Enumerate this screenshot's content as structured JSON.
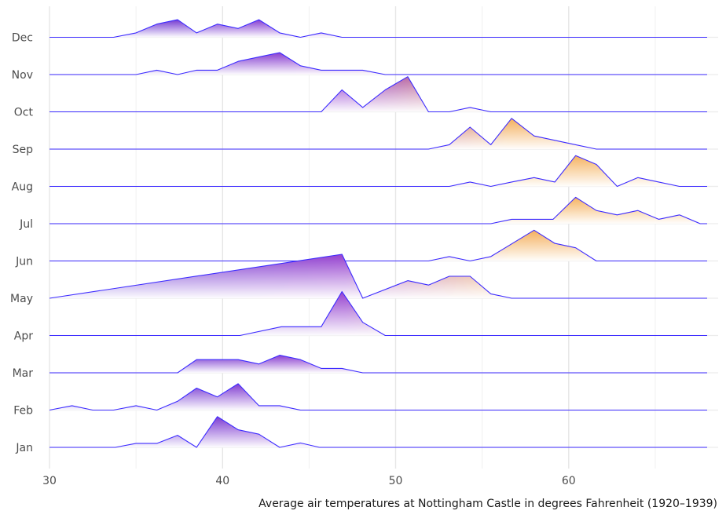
{
  "chart_data": {
    "type": "area",
    "subtype": "ridgeline",
    "caption": "Average air temperatures at Nottingham Castle in degrees Fahrenheit (1920–1939)",
    "xlabel": "",
    "ylabel": "",
    "xlim": [
      30,
      68
    ],
    "x_ticks": [
      "30",
      "40",
      "50",
      "60"
    ],
    "grid": true,
    "color_scale": {
      "low": "#ffffff",
      "mid": "#7a2fd6",
      "high": "#f2a64a",
      "line": "#3c2bff"
    },
    "categories": [
      "Jan",
      "Feb",
      "Mar",
      "Apr",
      "May",
      "Jun",
      "Jul",
      "Aug",
      "Sep",
      "Oct",
      "Nov",
      "Dec"
    ],
    "series": [
      {
        "name": "Jan",
        "x": [
          30.0,
          33.8,
          35.0,
          36.2,
          37.4,
          38.5,
          39.7,
          40.9,
          42.1,
          43.3,
          44.5,
          45.6,
          68.0
        ],
        "y": [
          0,
          0,
          0.18,
          0.18,
          0.55,
          0,
          1.4,
          0.8,
          0.6,
          0,
          0.2,
          0,
          0
        ]
      },
      {
        "name": "Feb",
        "x": [
          30.0,
          31.3,
          32.5,
          33.7,
          35.0,
          36.2,
          37.4,
          38.5,
          39.7,
          40.9,
          42.1,
          43.3,
          44.5,
          68.0
        ],
        "y": [
          0,
          0.2,
          0,
          0,
          0.2,
          0,
          0.4,
          1.0,
          0.6,
          1.2,
          0.2,
          0.2,
          0,
          0
        ]
      },
      {
        "name": "Mar",
        "x": [
          30.0,
          37.4,
          38.5,
          39.7,
          40.9,
          42.1,
          43.3,
          44.5,
          45.7,
          46.9,
          48.1,
          68.0
        ],
        "y": [
          0,
          0,
          0.6,
          0.6,
          0.6,
          0.4,
          0.8,
          0.6,
          0.2,
          0.2,
          0,
          0
        ]
      },
      {
        "name": "Apr",
        "x": [
          30.0,
          41.0,
          43.4,
          45.7,
          46.9,
          48.1,
          49.4,
          68.0
        ],
        "y": [
          0,
          0,
          0.4,
          0.4,
          2.0,
          0.6,
          0,
          0
        ]
      },
      {
        "name": "May",
        "x": [
          30.0,
          46.9,
          48.1,
          50.7,
          51.9,
          53.1,
          54.3,
          55.5,
          56.7,
          68.0
        ],
        "y": [
          0,
          2.0,
          0,
          0.8,
          0.6,
          1.0,
          1.0,
          0.2,
          0,
          0
        ]
      },
      {
        "name": "Jun",
        "x": [
          30.0,
          51.9,
          53.1,
          54.3,
          55.5,
          58.0,
          59.2,
          60.4,
          61.6,
          68.0
        ],
        "y": [
          0,
          0,
          0.2,
          0,
          0.2,
          1.4,
          0.8,
          0.6,
          0,
          0
        ]
      },
      {
        "name": "Jul",
        "x": [
          30.0,
          55.5,
          56.7,
          57.9,
          59.1,
          60.4,
          61.6,
          62.8,
          64.0,
          65.2,
          66.4,
          67.6,
          68.0
        ],
        "y": [
          0,
          0,
          0.2,
          0.2,
          0.2,
          1.2,
          0.6,
          0.4,
          0.6,
          0.2,
          0.4,
          0,
          0
        ]
      },
      {
        "name": "Aug",
        "x": [
          30.0,
          53.1,
          54.3,
          55.5,
          56.7,
          58.0,
          59.2,
          60.4,
          61.6,
          62.8,
          64.0,
          65.2,
          66.4,
          68.0
        ],
        "y": [
          0,
          0,
          0.2,
          0,
          0.2,
          0.4,
          0.2,
          1.4,
          1.0,
          0,
          0.4,
          0.2,
          0,
          0
        ]
      },
      {
        "name": "Sep",
        "x": [
          30.0,
          51.9,
          53.1,
          54.3,
          55.5,
          56.7,
          58.0,
          59.2,
          60.4,
          61.6,
          68.0
        ],
        "y": [
          0,
          0,
          0.2,
          1.0,
          0.2,
          1.4,
          0.6,
          0.4,
          0.2,
          0,
          0
        ]
      },
      {
        "name": "Oct",
        "x": [
          30.0,
          45.7,
          46.9,
          48.1,
          49.4,
          50.7,
          51.9,
          53.1,
          54.3,
          55.5,
          68.0
        ],
        "y": [
          0,
          0,
          1.0,
          0.2,
          1.0,
          1.6,
          0,
          0,
          0.2,
          0,
          0
        ]
      },
      {
        "name": "Nov",
        "x": [
          30.0,
          35.0,
          36.2,
          37.4,
          38.5,
          39.7,
          40.9,
          42.1,
          43.3,
          44.5,
          45.7,
          46.9,
          48.1,
          49.4,
          68.0
        ],
        "y": [
          0,
          0,
          0.2,
          0,
          0.2,
          0.2,
          0.6,
          0.8,
          1.0,
          0.4,
          0.2,
          0.2,
          0.2,
          0,
          0
        ]
      },
      {
        "name": "Dec",
        "x": [
          30.0,
          33.7,
          35.0,
          36.2,
          37.4,
          38.5,
          39.7,
          40.9,
          42.1,
          43.3,
          44.5,
          45.7,
          46.9,
          68.0
        ],
        "y": [
          0,
          0,
          0.2,
          0.6,
          0.8,
          0.2,
          0.6,
          0.4,
          0.8,
          0.2,
          0,
          0.2,
          0,
          0
        ]
      }
    ]
  }
}
